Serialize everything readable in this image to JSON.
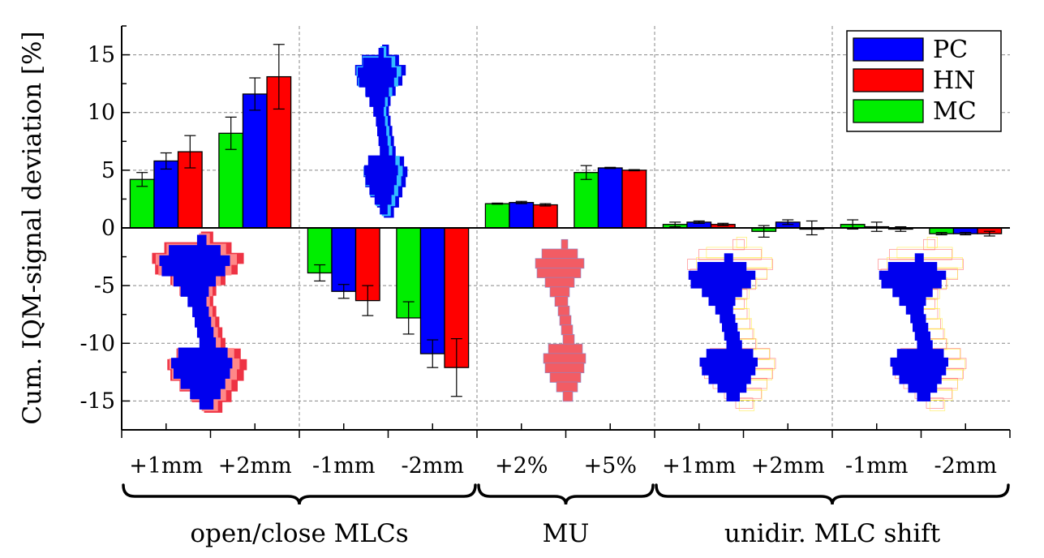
{
  "chart_data": {
    "type": "bar",
    "ylabel": "Cum. IQM-signal deviation [%]",
    "ylim": [
      -17.5,
      17.5
    ],
    "yticks": [
      -15,
      -10,
      -5,
      0,
      5,
      10,
      15
    ],
    "grid": true,
    "legend_position": "top-right",
    "categories": [
      "+1mm",
      "+2mm",
      "-1mm",
      "-2mm",
      "+2%",
      "+5%",
      "+1mm",
      "+2mm",
      "-1mm",
      "-2mm"
    ],
    "category_groups": [
      {
        "label": "open/close MLCs",
        "start": 0,
        "end": 3
      },
      {
        "label": "MU",
        "start": 4,
        "end": 5
      },
      {
        "label": "unidir. MLC shift",
        "start": 6,
        "end": 9
      }
    ],
    "series": [
      {
        "name": "MC",
        "color": "#00ee00",
        "values": [
          4.2,
          8.2,
          -3.9,
          -7.8,
          2.1,
          4.8,
          0.3,
          -0.3,
          0.3,
          -0.5
        ],
        "errors": [
          0.6,
          1.4,
          0.7,
          1.4,
          0.05,
          0.6,
          0.2,
          0.5,
          0.4,
          0.1
        ]
      },
      {
        "name": "PC",
        "color": "#0000ff",
        "values": [
          5.8,
          11.6,
          -5.5,
          -10.9,
          2.2,
          5.2,
          0.5,
          0.5,
          0.1,
          -0.5
        ],
        "errors": [
          0.7,
          1.4,
          0.6,
          1.2,
          0.1,
          0.05,
          0.1,
          0.2,
          0.4,
          0.1
        ]
      },
      {
        "name": "HN",
        "color": "#ff0000",
        "values": [
          6.6,
          13.1,
          -6.3,
          -12.1,
          2.0,
          5.0,
          0.3,
          0.0,
          -0.1,
          -0.5
        ],
        "errors": [
          1.4,
          2.8,
          1.3,
          2.5,
          0.1,
          0.05,
          0.1,
          0.6,
          0.2,
          0.2
        ]
      }
    ],
    "legend": [
      "PC",
      "HN",
      "MC"
    ],
    "background_color": "#ffffff",
    "shape_colors": {
      "blue": "#0000ee",
      "cyan": "#33bbff",
      "red": "#ee3344",
      "pink": "#ff8888",
      "salmon": "#f25c64",
      "yellow": "#ffee55"
    }
  }
}
